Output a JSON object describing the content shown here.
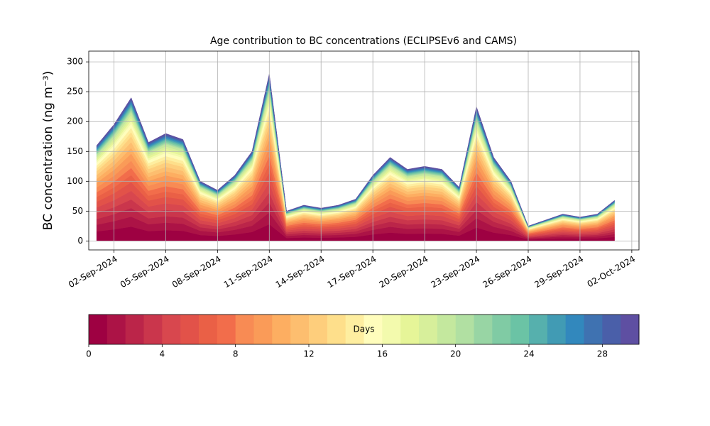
{
  "chart_data": {
    "type": "stacked_area",
    "title": "Age contribution to BC concentrations (ECLIPSEv6 and CAMS)",
    "y_label": "BC concentration (ng m⁻³)",
    "x": [
      "2024-09-01",
      "2024-09-02",
      "2024-09-03",
      "2024-09-04",
      "2024-09-05",
      "2024-09-06",
      "2024-09-07",
      "2024-09-08",
      "2024-09-09",
      "2024-09-10",
      "2024-09-11",
      "2024-09-12",
      "2024-09-13",
      "2024-09-14",
      "2024-09-15",
      "2024-09-16",
      "2024-09-17",
      "2024-09-18",
      "2024-09-19",
      "2024-09-20",
      "2024-09-21",
      "2024-09-22",
      "2024-09-23",
      "2024-09-24",
      "2024-09-25",
      "2024-09-26",
      "2024-09-27",
      "2024-09-28",
      "2024-09-29",
      "2024-09-30",
      "2024-10-01"
    ],
    "xlim": [
      "2024-08-31T13:00Z",
      "2024-10-02T10:00Z"
    ],
    "xticks": [
      {
        "value": "2024-09-02",
        "label": "02-Sep-2024"
      },
      {
        "value": "2024-09-05",
        "label": "05-Sep-2024"
      },
      {
        "value": "2024-09-08",
        "label": "08-Sep-2024"
      },
      {
        "value": "2024-09-11",
        "label": "11-Sep-2024"
      },
      {
        "value": "2024-09-14",
        "label": "14-Sep-2024"
      },
      {
        "value": "2024-09-17",
        "label": "17-Sep-2024"
      },
      {
        "value": "2024-09-20",
        "label": "20-Sep-2024"
      },
      {
        "value": "2024-09-23",
        "label": "23-Sep-2024"
      },
      {
        "value": "2024-09-26",
        "label": "26-Sep-2024"
      },
      {
        "value": "2024-09-29",
        "label": "29-Sep-2024"
      },
      {
        "value": "2024-10-02",
        "label": "02-Oct-2024"
      }
    ],
    "ylim": [
      -15,
      318
    ],
    "yticks": [
      0,
      50,
      100,
      150,
      200,
      250,
      300
    ],
    "grid": true,
    "colorbar": {
      "label": "Days",
      "lim": [
        0,
        30
      ],
      "ticks": [
        0,
        4,
        8,
        12,
        16,
        20,
        24,
        28
      ]
    },
    "series": [
      {
        "color": "#9e0142",
        "values": [
          16,
          19.5,
          24,
          16.5,
          18,
          17,
          10,
          8.5,
          11,
          15,
          28,
          5,
          6,
          5.5,
          6,
          7,
          11,
          14,
          12,
          12.5,
          12,
          9,
          22.5,
          14,
          10,
          2.5,
          3.5,
          4.5,
          4,
          4.5,
          6.8
        ]
      },
      {
        "color": "#ac1346",
        "values": [
          11.2,
          13.65,
          16.8,
          11.55,
          12.6,
          11.9,
          7,
          5.95,
          7.7,
          10.5,
          19.6,
          3.5,
          4.2,
          3.85,
          4.2,
          4.9,
          7.7,
          9.8,
          8.4,
          8.75,
          8.4,
          6.3,
          15.75,
          9.8,
          7,
          1.75,
          2.45,
          3.15,
          2.8,
          3.15,
          4.76
        ]
      },
      {
        "color": "#bb2549",
        "values": [
          9.6,
          11.7,
          14.4,
          9.9,
          10.8,
          10.2,
          6,
          5.1,
          6.6,
          9,
          16.8,
          3,
          3.6,
          3.3,
          3.6,
          4.2,
          6.6,
          8.4,
          7.2,
          7.5,
          7.2,
          5.4,
          13.5,
          8.4,
          6,
          1.5,
          2.1,
          2.7,
          2.4,
          2.7,
          4.08
        ]
      },
      {
        "color": "#ca364c",
        "values": [
          9.6,
          11.7,
          14.4,
          9.9,
          10.8,
          10.2,
          6,
          5.1,
          6.6,
          9,
          16.8,
          3,
          3.6,
          3.3,
          3.6,
          4.2,
          6.6,
          8.4,
          7.2,
          7.5,
          7.2,
          5.4,
          13.5,
          8.4,
          6,
          1.5,
          2.1,
          2.7,
          2.4,
          2.7,
          4.08
        ]
      },
      {
        "color": "#d8474e",
        "values": [
          9.6,
          11.7,
          14.4,
          9.9,
          10.8,
          10.2,
          6,
          5.1,
          6.6,
          9,
          16.8,
          3,
          3.6,
          3.3,
          3.6,
          4.2,
          6.6,
          8.4,
          7.2,
          7.5,
          7.2,
          5.4,
          13.5,
          8.4,
          6,
          1.5,
          2.1,
          2.7,
          2.4,
          2.7,
          4.08
        ]
      },
      {
        "color": "#e25249",
        "values": [
          9.6,
          11.7,
          14.4,
          9.9,
          10.8,
          10.2,
          6,
          5.1,
          6.6,
          9,
          16.8,
          3,
          3.6,
          3.3,
          3.6,
          4.2,
          6.6,
          8.4,
          7.2,
          7.5,
          7.2,
          5.4,
          13.5,
          8.4,
          6,
          1.5,
          2.1,
          2.7,
          2.4,
          2.7,
          4.08
        ]
      },
      {
        "color": "#ea6046",
        "values": [
          8,
          9.75,
          12,
          8.25,
          9,
          8.5,
          5,
          4.25,
          5.5,
          7.5,
          14,
          2.5,
          3,
          2.75,
          3,
          3.5,
          5.5,
          7,
          6,
          6.25,
          6,
          4.5,
          11.25,
          7,
          5,
          1.25,
          1.75,
          2.25,
          2,
          2.25,
          3.4
        ]
      },
      {
        "color": "#f26d4b",
        "values": [
          8,
          9.75,
          12,
          8.25,
          9,
          8.5,
          5,
          4.25,
          5.5,
          7.5,
          14,
          2.5,
          3,
          2.75,
          3,
          3.5,
          5.5,
          7,
          6,
          6.25,
          6,
          4.5,
          11.25,
          7,
          5,
          1.25,
          1.75,
          2.25,
          2,
          2.25,
          3.4
        ]
      },
      {
        "color": "#f88b54",
        "values": [
          8,
          9.75,
          12,
          8.25,
          9,
          8.5,
          5,
          4.25,
          5.5,
          7.5,
          14,
          2.5,
          3,
          2.75,
          3,
          3.5,
          5.5,
          7,
          6,
          6.25,
          6,
          4.5,
          11.25,
          7,
          5,
          1.25,
          1.75,
          2.25,
          2,
          2.25,
          3.4
        ]
      },
      {
        "color": "#fa9b58",
        "values": [
          8,
          9.75,
          12,
          8.25,
          9,
          8.5,
          5,
          4.25,
          5.5,
          7.5,
          14,
          2.5,
          3,
          2.75,
          3,
          3.5,
          5.5,
          7,
          6,
          6.25,
          6,
          4.5,
          11.25,
          7,
          5,
          1.25,
          1.75,
          2.25,
          2,
          2.25,
          3.4
        ]
      },
      {
        "color": "#fdae61",
        "values": [
          6.4,
          7.8,
          9.6,
          6.6,
          7.2,
          6.8,
          4,
          3.4,
          4.4,
          6,
          11.2,
          2,
          2.4,
          2.2,
          2.4,
          2.8,
          4.4,
          5.6,
          4.8,
          5,
          4.8,
          3.6,
          9,
          5.6,
          4,
          1,
          1.4,
          1.8,
          1.6,
          1.8,
          2.72
        ]
      },
      {
        "color": "#fdbe6f",
        "values": [
          6.4,
          7.8,
          9.6,
          6.6,
          7.2,
          6.8,
          4,
          3.4,
          4.4,
          6,
          11.2,
          2,
          2.4,
          2.2,
          2.4,
          2.8,
          4.4,
          5.6,
          4.8,
          5,
          4.8,
          3.6,
          9,
          5.6,
          4,
          1,
          1.4,
          1.8,
          1.6,
          1.8,
          2.72
        ]
      },
      {
        "color": "#fece7c",
        "values": [
          6.4,
          7.8,
          9.6,
          6.6,
          7.2,
          6.8,
          4,
          3.4,
          4.4,
          6,
          11.2,
          2,
          2.4,
          2.2,
          2.4,
          2.8,
          4.4,
          5.6,
          4.8,
          5,
          4.8,
          3.6,
          9,
          5.6,
          4,
          1,
          1.4,
          1.8,
          1.6,
          1.8,
          2.72
        ]
      },
      {
        "color": "#fedf8b",
        "values": [
          4.8,
          5.85,
          7.2,
          4.95,
          5.4,
          5.1,
          3,
          2.55,
          3.3,
          4.5,
          8.4,
          1.5,
          1.8,
          1.65,
          1.8,
          2.1,
          3.3,
          4.2,
          3.6,
          3.75,
          3.6,
          2.7,
          6.75,
          4.2,
          3,
          0.75,
          1.05,
          1.35,
          1.2,
          1.35,
          2.04
        ]
      },
      {
        "color": "#feeea0",
        "values": [
          4.8,
          5.85,
          7.2,
          4.95,
          5.4,
          5.1,
          3,
          2.55,
          3.3,
          4.5,
          8.4,
          1.5,
          1.8,
          1.65,
          1.8,
          2.1,
          3.3,
          4.2,
          3.6,
          3.75,
          3.6,
          2.7,
          6.75,
          4.2,
          3,
          0.75,
          1.05,
          1.35,
          1.2,
          1.35,
          2.04
        ]
      },
      {
        "color": "#fffdbc",
        "values": [
          4.8,
          5.85,
          7.2,
          4.95,
          5.4,
          5.1,
          3,
          2.55,
          3.3,
          4.5,
          8.4,
          1.5,
          1.8,
          1.65,
          1.8,
          2.1,
          3.3,
          4.2,
          3.6,
          3.75,
          3.6,
          2.7,
          6.75,
          4.2,
          3,
          0.75,
          1.05,
          1.35,
          1.2,
          1.35,
          2.04
        ]
      },
      {
        "color": "#f3faad",
        "values": [
          3.2,
          3.9,
          4.8,
          3.3,
          3.6,
          3.4,
          2,
          1.7,
          2.2,
          3,
          5.6,
          1,
          1.2,
          1.1,
          1.2,
          1.4,
          2.2,
          2.8,
          2.4,
          2.5,
          2.4,
          1.8,
          4.5,
          2.8,
          2,
          0.5,
          0.7,
          0.9,
          0.8,
          0.9,
          1.36
        ]
      },
      {
        "color": "#e6f598",
        "values": [
          3.2,
          3.9,
          4.8,
          3.3,
          3.6,
          3.4,
          2,
          1.7,
          2.2,
          3,
          5.6,
          1,
          1.2,
          1.1,
          1.2,
          1.4,
          2.2,
          2.8,
          2.4,
          2.5,
          2.4,
          1.8,
          4.5,
          2.8,
          2,
          0.5,
          0.7,
          0.9,
          0.8,
          0.9,
          1.36
        ]
      },
      {
        "color": "#d7ef9b",
        "values": [
          3.2,
          3.9,
          4.8,
          3.3,
          3.6,
          3.4,
          2,
          1.7,
          2.2,
          3,
          5.6,
          1,
          1.2,
          1.1,
          1.2,
          1.4,
          2.2,
          2.8,
          2.4,
          2.5,
          2.4,
          1.8,
          4.5,
          2.8,
          2,
          0.5,
          0.7,
          0.9,
          0.8,
          0.9,
          1.36
        ]
      },
      {
        "color": "#c4e89e",
        "values": [
          3.2,
          3.9,
          4.8,
          3.3,
          3.6,
          3.4,
          2,
          1.7,
          2.2,
          3,
          5.6,
          1,
          1.2,
          1.1,
          1.2,
          1.4,
          2.2,
          2.8,
          2.4,
          2.5,
          2.4,
          1.8,
          4.5,
          2.8,
          2,
          0.5,
          0.7,
          0.9,
          0.8,
          0.9,
          1.36
        ]
      },
      {
        "color": "#b1e0a2",
        "values": [
          1.6,
          1.95,
          2.4,
          1.65,
          1.8,
          1.7,
          1,
          0.85,
          1.1,
          1.5,
          2.8,
          0.5,
          0.6,
          0.55,
          0.6,
          0.7,
          1.1,
          1.4,
          1.2,
          1.25,
          1.2,
          0.9,
          2.25,
          1.4,
          1,
          0.25,
          0.35,
          0.45,
          0.4,
          0.45,
          0.68
        ]
      },
      {
        "color": "#98d5a4",
        "values": [
          1.6,
          1.95,
          2.4,
          1.65,
          1.8,
          1.7,
          1,
          0.85,
          1.1,
          1.5,
          2.8,
          0.5,
          0.6,
          0.55,
          0.6,
          0.7,
          1.1,
          1.4,
          1.2,
          1.25,
          1.2,
          0.9,
          2.25,
          1.4,
          1,
          0.25,
          0.35,
          0.45,
          0.4,
          0.45,
          0.68
        ]
      },
      {
        "color": "#80cba4",
        "values": [
          1.6,
          1.95,
          2.4,
          1.65,
          1.8,
          1.7,
          1,
          0.85,
          1.1,
          1.5,
          2.8,
          0.5,
          0.6,
          0.55,
          0.6,
          0.7,
          1.1,
          1.4,
          1.2,
          1.25,
          1.2,
          0.9,
          2.25,
          1.4,
          1,
          0.25,
          0.35,
          0.45,
          0.4,
          0.45,
          0.68
        ]
      },
      {
        "color": "#6bc3a5",
        "values": [
          1.6,
          1.95,
          2.4,
          1.65,
          1.8,
          1.7,
          1,
          0.85,
          1.1,
          1.5,
          2.8,
          0.5,
          0.6,
          0.55,
          0.6,
          0.7,
          1.1,
          1.4,
          1.2,
          1.25,
          1.2,
          0.9,
          2.25,
          1.4,
          1,
          0.25,
          0.35,
          0.45,
          0.4,
          0.45,
          0.68
        ]
      },
      {
        "color": "#56b0ad",
        "values": [
          1.6,
          1.95,
          2.4,
          1.65,
          1.8,
          1.7,
          1,
          0.85,
          1.1,
          1.5,
          2.8,
          0.5,
          0.6,
          0.55,
          0.6,
          0.7,
          1.1,
          1.4,
          1.2,
          1.25,
          1.2,
          0.9,
          2.25,
          1.4,
          1,
          0.25,
          0.35,
          0.45,
          0.4,
          0.45,
          0.68
        ]
      },
      {
        "color": "#419bb4",
        "values": [
          1.6,
          1.95,
          2.4,
          1.65,
          1.8,
          1.7,
          1,
          0.85,
          1.1,
          1.5,
          2.8,
          0.5,
          0.6,
          0.55,
          0.6,
          0.7,
          1.1,
          1.4,
          1.2,
          1.25,
          1.2,
          0.9,
          2.25,
          1.4,
          1,
          0.25,
          0.35,
          0.45,
          0.4,
          0.45,
          0.68
        ]
      },
      {
        "color": "#3288bd",
        "values": [
          1.6,
          1.95,
          2.4,
          1.65,
          1.8,
          1.7,
          1,
          0.85,
          1.1,
          1.5,
          2.8,
          0.5,
          0.6,
          0.55,
          0.6,
          0.7,
          1.1,
          1.4,
          1.2,
          1.25,
          1.2,
          0.9,
          2.25,
          1.4,
          1,
          0.25,
          0.35,
          0.45,
          0.4,
          0.45,
          0.68
        ]
      },
      {
        "color": "#3f72b1",
        "values": [
          1.6,
          1.95,
          2.4,
          1.65,
          1.8,
          1.7,
          1,
          0.85,
          1.1,
          1.5,
          2.8,
          0.5,
          0.6,
          0.55,
          0.6,
          0.7,
          1.1,
          1.4,
          1.2,
          1.25,
          1.2,
          0.9,
          2.25,
          1.4,
          1,
          0.25,
          0.35,
          0.45,
          0.4,
          0.45,
          0.68
        ]
      },
      {
        "color": "#4a5fa9",
        "values": [
          1.6,
          1.95,
          2.4,
          1.65,
          1.8,
          1.7,
          1,
          0.85,
          1.1,
          1.5,
          2.8,
          0.5,
          0.6,
          0.55,
          0.6,
          0.7,
          1.1,
          1.4,
          1.2,
          1.25,
          1.2,
          0.9,
          2.25,
          1.4,
          1,
          0.25,
          0.35,
          0.45,
          0.4,
          0.45,
          0.68
        ]
      },
      {
        "color": "#5e4fa2",
        "values": [
          1.6,
          1.95,
          2.4,
          1.65,
          1.8,
          1.7,
          1,
          0.85,
          1.1,
          1.5,
          2.8,
          0.5,
          0.6,
          0.55,
          0.6,
          0.7,
          1.1,
          1.4,
          1.2,
          1.25,
          1.2,
          0.9,
          2.25,
          1.4,
          1,
          0.25,
          0.35,
          0.45,
          0.4,
          0.45,
          0.68
        ]
      }
    ]
  }
}
